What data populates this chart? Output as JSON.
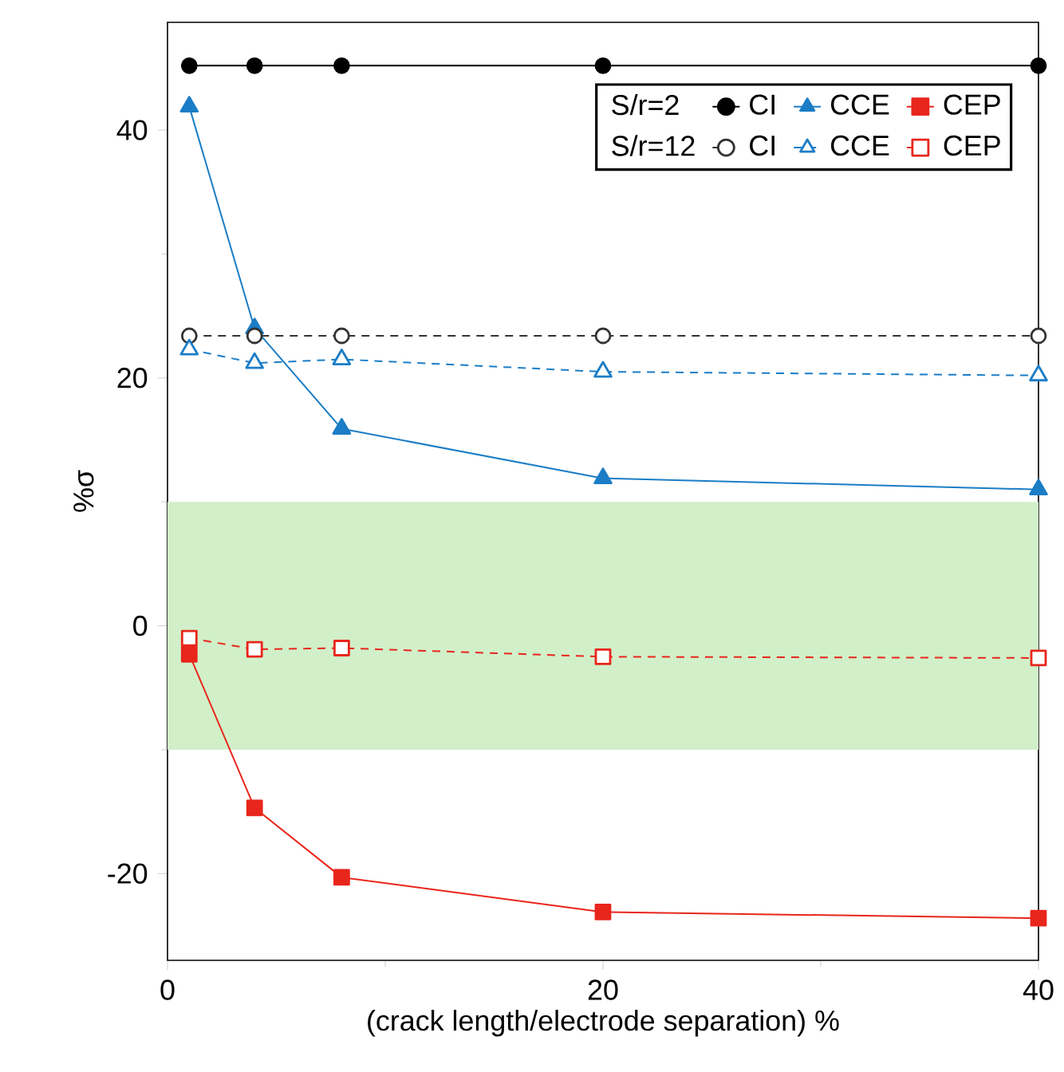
{
  "chart_data": {
    "type": "line",
    "xlabel": "(crack length/electrode separation) %",
    "ylabel": "%σ",
    "xlim": [
      0,
      40
    ],
    "ylim": [
      -27,
      48.7
    ],
    "xticks": [
      0,
      {
        "value": 10,
        "label": null
      },
      20,
      {
        "value": 30,
        "label": null
      },
      40
    ],
    "yticks": [
      {
        "value": -10,
        "label": null
      },
      -20,
      0,
      {
        "value": 10,
        "label": null
      },
      20,
      {
        "value": 30,
        "label": null
      },
      40
    ],
    "legend": "top right",
    "annotations": [
      "S/r=2",
      "S/r=12"
    ],
    "bands": [
      {
        "axis": "y",
        "from": -10,
        "to": 10,
        "color": "#d1f0c9"
      }
    ],
    "series": [
      {
        "name": "CI",
        "color": "#000000",
        "marker": "circle",
        "line_style": "solid",
        "x": [
          1,
          4,
          8,
          20,
          40
        ],
        "values": [
          45.2,
          45.2,
          45.2,
          45.2,
          45.2
        ]
      },
      {
        "name": "CCE",
        "color": "#1b7dc6",
        "marker": "triangle",
        "line_style": "solid",
        "x": [
          1,
          4,
          8,
          20,
          40
        ],
        "values": [
          41.9,
          24.0,
          15.9,
          11.9,
          11.0
        ]
      },
      {
        "name": "CEP",
        "color": "#e8261c",
        "marker": "square",
        "line_style": "solid",
        "x": [
          1,
          4,
          8,
          20,
          40
        ],
        "values": [
          -2.3,
          -14.7,
          -20.3,
          -23.1,
          -23.6
        ]
      },
      {
        "name": "CI",
        "color": "#333333",
        "marker": "circle",
        "line_style": "dashed",
        "x": [
          1,
          4,
          8,
          20,
          40
        ],
        "values": [
          23.4,
          23.4,
          23.4,
          23.4,
          23.4
        ]
      },
      {
        "name": "CCE",
        "color": "#1b7dc6",
        "marker": "triangle",
        "line_style": "dashed",
        "x": [
          1,
          4,
          8,
          20,
          40
        ],
        "values": [
          22.3,
          21.2,
          21.5,
          20.5,
          20.2
        ]
      },
      {
        "name": "CEP",
        "color": "#e8261c",
        "marker": "square",
        "line_style": "dashed",
        "x": [
          1,
          4,
          8,
          20,
          40
        ],
        "values": [
          -1.0,
          -1.9,
          -1.8,
          -2.5,
          -2.6
        ]
      }
    ]
  }
}
